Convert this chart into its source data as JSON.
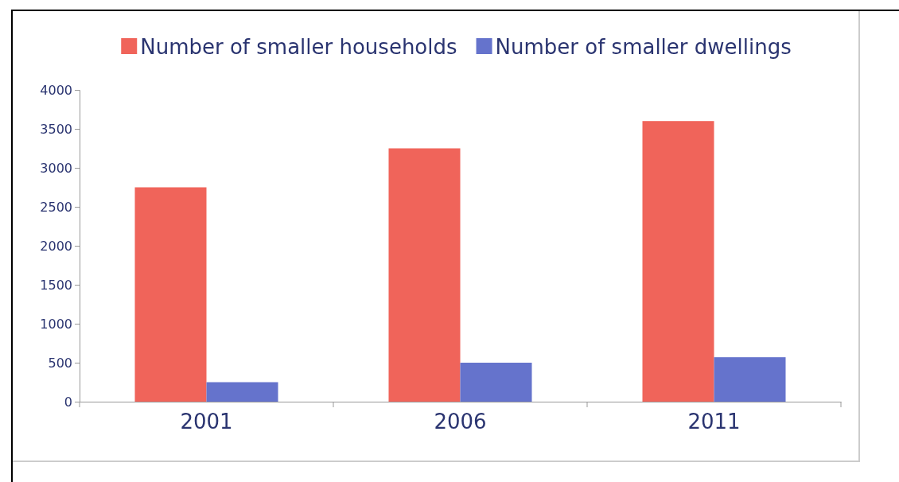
{
  "chart_data": {
    "type": "bar",
    "categories": [
      "2001",
      "2006",
      "2011"
    ],
    "series": [
      {
        "name": "Number of smaller households",
        "color": "#f0645a",
        "values": [
          2750,
          3250,
          3600
        ]
      },
      {
        "name": "Number of smaller dwellings",
        "color": "#6573cc",
        "values": [
          250,
          500,
          570
        ]
      }
    ],
    "ylim": [
      0,
      4000
    ],
    "yticks": [
      0,
      500,
      1000,
      1500,
      2000,
      2500,
      3000,
      3500,
      4000
    ],
    "grid": false,
    "legend": "top"
  }
}
